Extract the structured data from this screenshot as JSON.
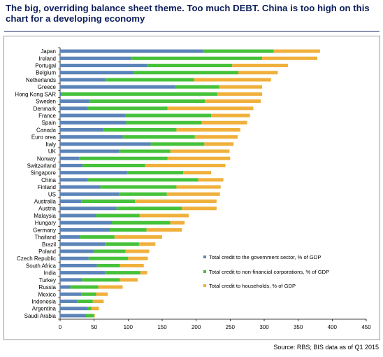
{
  "title": "The big, overriding balance sheet theme. Too much DEBT. China is too high on this chart for a developing economy",
  "source": "Source:  RBS; BIS data as of Q1 2015",
  "colors": {
    "government": "#5b84b8",
    "corporations": "#46c13a",
    "households": "#f0b03c",
    "title": "#0d1f5c"
  },
  "chart_data": {
    "type": "bar",
    "orientation": "horizontal",
    "stacked": true,
    "xlim": [
      0,
      450
    ],
    "xticks": [
      "0",
      "50",
      "100",
      "150",
      "200",
      "250",
      "300",
      "350",
      "400",
      "450"
    ],
    "legend_position": "right",
    "categories": [
      "Japan",
      "Ireland",
      "Portugal",
      "Belgium",
      "Netherlands",
      "Greece",
      "Hong Kong SAR",
      "Sweden",
      "Denmark",
      "France",
      "Spain",
      "Canada",
      "Euro area",
      "Italy",
      "UK",
      "Norway",
      "Switzerland",
      "Singapore",
      "China",
      "Finland",
      "US",
      "Australia",
      "Austria",
      "Malaysia",
      "Hungary",
      "Germany",
      "Thailand",
      "Brazil",
      "Poland",
      "Czech Republic",
      "South Africa",
      "India",
      "Turkey",
      "Russia",
      "Mexico",
      "Indonesia",
      "Argentina",
      "Saudi Arabia"
    ],
    "series": [
      {
        "name": "Total credit to the government sector, % of GDP",
        "values": [
          211,
          104,
          128,
          108,
          67,
          169,
          2,
          43,
          41,
          96,
          97,
          64,
          92,
          133,
          87,
          28,
          33,
          99,
          41,
          59,
          87,
          31,
          83,
          53,
          76,
          73,
          29,
          66,
          50,
          42,
          54,
          66,
          32,
          15,
          31,
          25,
          41,
          38
        ]
      },
      {
        "name": "Total credit to non-financial corporations, % of GDP",
        "values": [
          103,
          193,
          125,
          154,
          130,
          65,
          229,
          170,
          117,
          126,
          111,
          107,
          106,
          79,
          75,
          130,
          92,
          82,
          162,
          112,
          70,
          79,
          96,
          64,
          86,
          54,
          51,
          50,
          46,
          58,
          34,
          52,
          56,
          41,
          22,
          23,
          5,
          12
        ]
      },
      {
        "name": "Total credit to households, % of GDP",
        "values": [
          68,
          81,
          82,
          58,
          113,
          63,
          66,
          82,
          126,
          57,
          67,
          94,
          63,
          43,
          87,
          92,
          118,
          41,
          37,
          65,
          78,
          120,
          51,
          72,
          21,
          52,
          70,
          24,
          35,
          29,
          35,
          10,
          26,
          36,
          17,
          16,
          11,
          1
        ]
      }
    ]
  }
}
